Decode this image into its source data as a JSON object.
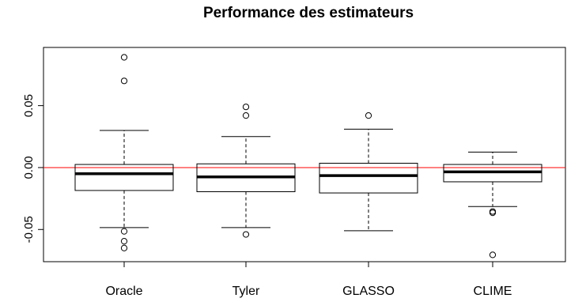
{
  "chart_data": {
    "type": "box",
    "title": "Performance des estimateurs",
    "xlabel": "",
    "ylabel": "",
    "ylim": [
      -0.076,
      0.097
    ],
    "y_ticks": [
      -0.05,
      0.0,
      0.05
    ],
    "y_tick_labels": [
      "-0.05",
      "0.00",
      "0.05"
    ],
    "reference_line": {
      "y": 0.0,
      "color": "#ff0000"
    },
    "boxes": [
      {
        "category": "Oracle",
        "whisker_low": -0.0485,
        "q1": -0.0185,
        "median": -0.005,
        "q3": 0.0025,
        "whisker_high": 0.03,
        "outliers": [
          0.089,
          0.07,
          -0.0515,
          -0.0595,
          -0.065
        ]
      },
      {
        "category": "Tyler",
        "whisker_low": -0.0485,
        "q1": -0.0195,
        "median": -0.0075,
        "q3": 0.003,
        "whisker_high": 0.025,
        "outliers": [
          0.049,
          0.042,
          -0.054
        ]
      },
      {
        "category": "GLASSO",
        "whisker_low": -0.051,
        "q1": -0.0205,
        "median": -0.0065,
        "q3": 0.0035,
        "whisker_high": 0.031,
        "outliers": [
          0.042
        ]
      },
      {
        "category": "CLIME",
        "whisker_low": -0.0315,
        "q1": -0.0115,
        "median": -0.0035,
        "q3": 0.0025,
        "whisker_high": 0.0125,
        "outliers": [
          -0.0355,
          -0.0365,
          -0.0705
        ]
      }
    ]
  }
}
